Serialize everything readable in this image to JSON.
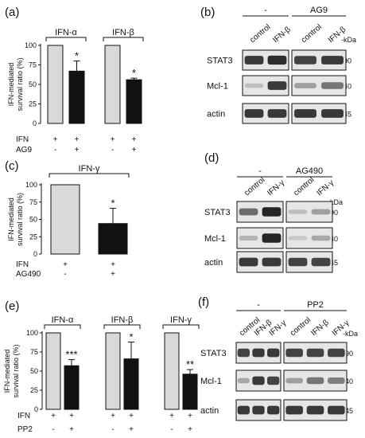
{
  "figure": {
    "panels": [
      {
        "id": "a",
        "label": "(a)"
      },
      {
        "id": "b",
        "label": "(b)"
      },
      {
        "id": "c",
        "label": "(c)"
      },
      {
        "id": "d",
        "label": "(d)"
      },
      {
        "id": "e",
        "label": "(e)"
      },
      {
        "id": "f",
        "label": "(f)"
      }
    ],
    "ylabel_line1": "IFN-mediated",
    "ylabel_line2": "survival ratio (%)",
    "yticks": [
      "0",
      "25",
      "50",
      "75",
      "100"
    ],
    "kda_unit": "-kDa"
  },
  "colors": {
    "control_bar": "#d9d9d9",
    "treated_bar": "#111111",
    "band": "#1a1a1a",
    "blot_bg": "#e6e6e6"
  },
  "chart_data": [
    {
      "panel": "a",
      "type": "bar",
      "ylabel": "IFN-mediated survival ratio (%)",
      "ylim": [
        0,
        100
      ],
      "groups": [
        {
          "title": "IFN-α",
          "categories": [
            "IFN + / AG9 -",
            "IFN + / AG9 +"
          ],
          "values": [
            100,
            67
          ],
          "errors": [
            0,
            13
          ],
          "stars": [
            "",
            "*"
          ]
        },
        {
          "title": "IFN-β",
          "categories": [
            "IFN + / AG9 -",
            "IFN + / AG9 +"
          ],
          "values": [
            100,
            56
          ],
          "errors": [
            0,
            2
          ],
          "stars": [
            "",
            "*"
          ]
        }
      ],
      "rows": [
        {
          "label": "IFN",
          "signs": [
            "+",
            "+",
            "+",
            "+"
          ]
        },
        {
          "label": "AG9",
          "signs": [
            "-",
            "+",
            "-",
            "+"
          ]
        }
      ]
    },
    {
      "panel": "c",
      "type": "bar",
      "ylabel": "IFN-mediated survival ratio (%)",
      "ylim": [
        0,
        100
      ],
      "groups": [
        {
          "title": "IFN-γ",
          "categories": [
            "IFN + / AG490 -",
            "IFN + / AG490 +"
          ],
          "values": [
            100,
            44
          ],
          "errors": [
            0,
            22
          ],
          "stars": [
            "",
            "*"
          ]
        }
      ],
      "rows": [
        {
          "label": "IFN",
          "signs": [
            "+",
            "+"
          ]
        },
        {
          "label": "AG490",
          "signs": [
            "-",
            "+"
          ]
        }
      ]
    },
    {
      "panel": "e",
      "type": "bar",
      "ylabel": "IFN-mediated survival ratio (%)",
      "ylim": [
        0,
        100
      ],
      "groups": [
        {
          "title": "IFN-α",
          "categories": [
            "IFN + / PP2 -",
            "IFN + / PP2 +"
          ],
          "values": [
            100,
            57
          ],
          "errors": [
            0,
            8
          ],
          "stars": [
            "",
            "***"
          ]
        },
        {
          "title": "IFN-β",
          "categories": [
            "IFN + / PP2 -",
            "IFN + / PP2 +"
          ],
          "values": [
            100,
            66
          ],
          "errors": [
            0,
            22
          ],
          "stars": [
            "",
            "*"
          ]
        },
        {
          "title": "IFN-γ",
          "categories": [
            "IFN + / PP2 -",
            "IFN + / PP2 +"
          ],
          "values": [
            100,
            46
          ],
          "errors": [
            0,
            6
          ],
          "stars": [
            "",
            "**"
          ]
        }
      ],
      "rows": [
        {
          "label": "IFN",
          "signs": [
            "+",
            "+",
            "+",
            "+",
            "+",
            "+"
          ]
        },
        {
          "label": "PP2",
          "signs": [
            "-",
            "+",
            "-",
            "+",
            "-",
            "+"
          ]
        }
      ]
    }
  ],
  "blots": [
    {
      "panel": "b",
      "treatments": [
        {
          "label": "-",
          "lanes": [
            "control",
            "IFN-β"
          ]
        },
        {
          "label": "AG9",
          "lanes": [
            "control",
            "IFN-β"
          ]
        }
      ],
      "rows": [
        {
          "protein": "STAT3",
          "kda": "-90",
          "intensity": [
            0.85,
            0.9,
            0.8,
            0.85
          ]
        },
        {
          "protein": "Mcl-1",
          "kda": "-40",
          "intensity": [
            0.2,
            0.85,
            0.35,
            0.55
          ]
        },
        {
          "protein": "actin",
          "kda": "-45",
          "intensity": [
            0.85,
            0.85,
            0.85,
            0.85
          ]
        }
      ]
    },
    {
      "panel": "d",
      "treatments": [
        {
          "label": "-",
          "lanes": [
            "control",
            "IFN-γ"
          ]
        },
        {
          "label": "AG490",
          "lanes": [
            "control",
            "IFN-γ"
          ]
        }
      ],
      "rows": [
        {
          "protein": "STAT3",
          "kda": "-90",
          "intensity": [
            0.6,
            0.95,
            0.2,
            0.35
          ]
        },
        {
          "protein": "Mcl-1",
          "kda": "-40",
          "intensity": [
            0.25,
            0.95,
            0.15,
            0.3
          ]
        },
        {
          "protein": "actin",
          "kda": "-45",
          "intensity": [
            0.85,
            0.85,
            0.8,
            0.8
          ]
        }
      ]
    },
    {
      "panel": "f",
      "treatments": [
        {
          "label": "-",
          "lanes": [
            "control",
            "IFN-β",
            "IFN-γ"
          ]
        },
        {
          "label": "PP2",
          "lanes": [
            "control",
            "IFN-β",
            "IFN-γ"
          ]
        }
      ],
      "rows": [
        {
          "protein": "STAT3",
          "kda": "-90",
          "intensity": [
            0.8,
            0.85,
            0.85,
            0.8,
            0.8,
            0.8
          ]
        },
        {
          "protein": "Mcl-1",
          "kda": "-40",
          "intensity": [
            0.3,
            0.85,
            0.8,
            0.35,
            0.55,
            0.5
          ]
        },
        {
          "protein": "actin",
          "kda": "-45",
          "intensity": [
            0.85,
            0.85,
            0.85,
            0.85,
            0.85,
            0.85
          ]
        }
      ]
    }
  ]
}
